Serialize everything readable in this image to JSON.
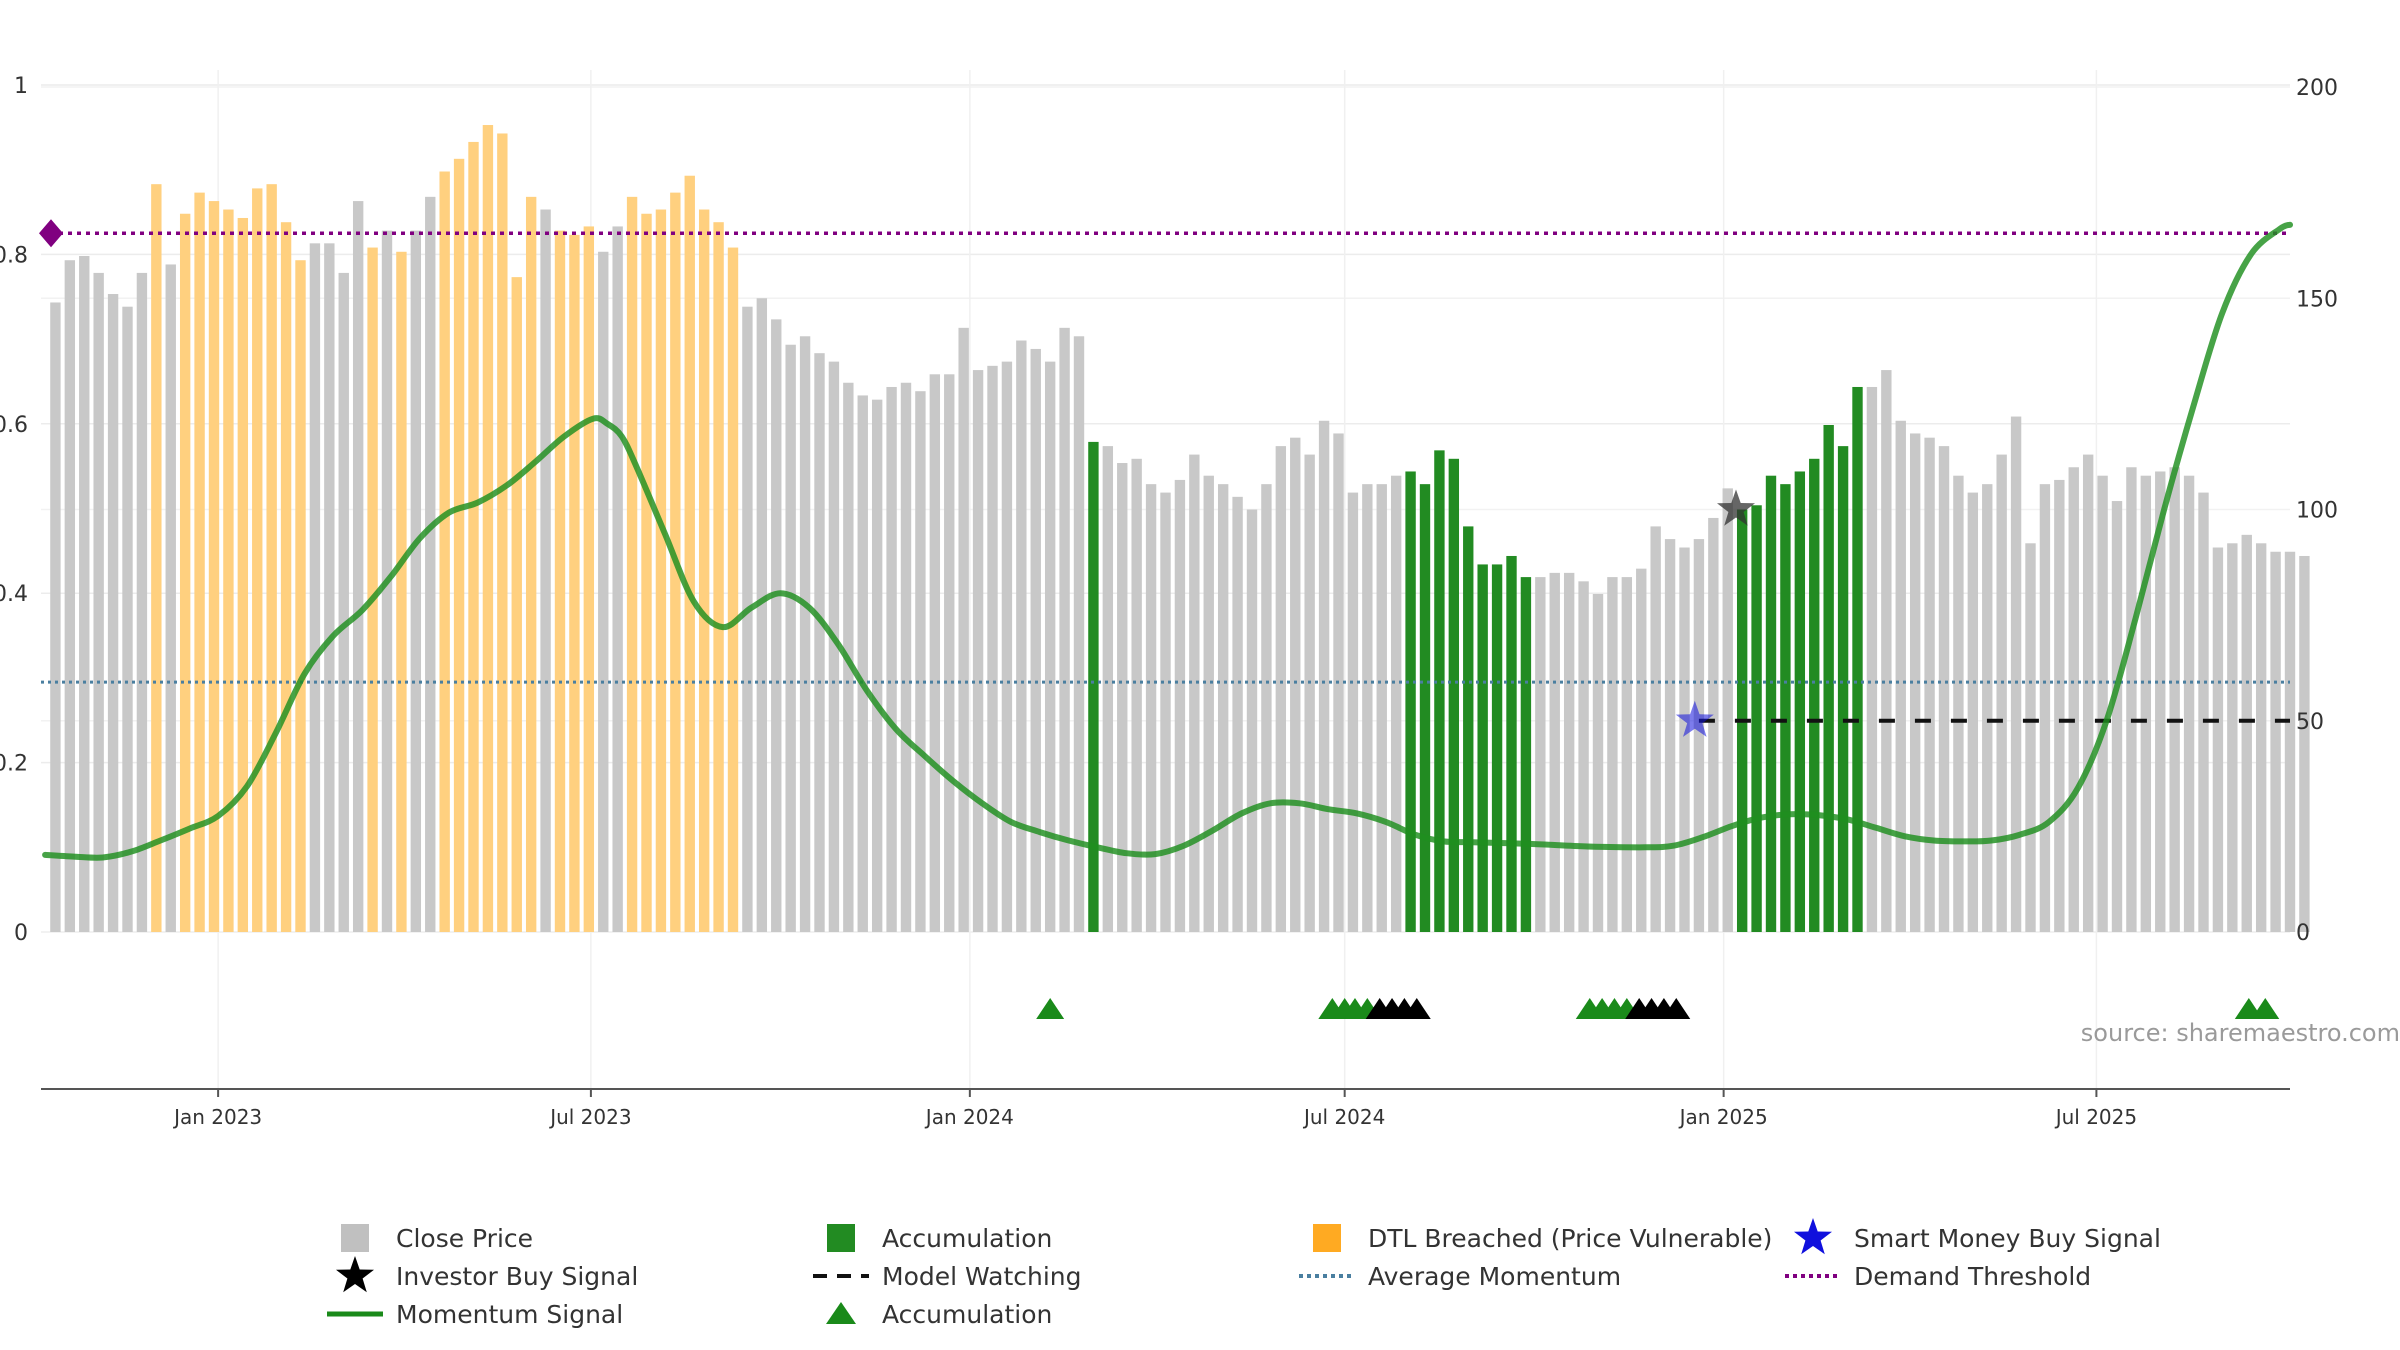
{
  "chart_data": {
    "type": "bar",
    "source": "source: sharemaestro.com",
    "left_axis": {
      "ylim": [
        0,
        1
      ],
      "ticks": [
        0,
        0.2,
        0.4,
        0.6,
        0.8,
        1
      ],
      "labels": [
        "0",
        "0.2",
        "0.4",
        "0.6",
        "0.8",
        "1"
      ]
    },
    "right_axis": {
      "ylim": [
        0,
        200
      ],
      "ticks": [
        0,
        50,
        100,
        150,
        200
      ],
      "labels": [
        "0",
        "50",
        "100",
        "150",
        "200"
      ]
    },
    "x_axis": {
      "start": "2022-10-07",
      "end": "2025-10-03",
      "ticks": [
        {
          "date": "2023-01-01",
          "label": "Jan 2023"
        },
        {
          "date": "2023-07-01",
          "label": "Jul 2023"
        },
        {
          "date": "2024-01-01",
          "label": "Jan 2024"
        },
        {
          "date": "2024-07-01",
          "label": "Jul 2024"
        },
        {
          "date": "2025-01-01",
          "label": "Jan 2025"
        },
        {
          "date": "2025-07-01",
          "label": "Jul 2025"
        }
      ]
    },
    "colors": {
      "close_price": "#c8c8c8",
      "accumulation": "#228b22",
      "dtl_breached": "#ffd07f",
      "momentum": "#1f8f1f",
      "average_momentum": "#4a7fa0",
      "demand_threshold": "#800080",
      "model_watching": "#111111",
      "smart_money": "#1010dd",
      "investor_buy": "#333333"
    },
    "bars": {
      "first_week": "2022-10-14",
      "close": [
        149,
        159,
        160,
        156,
        151,
        148,
        156,
        177,
        158,
        170,
        175,
        173,
        171,
        169,
        176,
        177,
        168,
        159,
        163,
        163,
        156,
        173,
        162,
        166,
        161,
        166,
        174,
        180,
        183,
        187,
        191,
        189,
        155,
        174,
        171,
        166,
        165,
        167,
        161,
        167,
        174,
        170,
        171,
        175,
        179,
        171,
        168,
        162,
        148,
        150,
        145,
        139,
        141,
        137,
        135,
        130,
        127,
        126,
        129,
        130,
        128,
        132,
        132,
        143,
        133,
        134,
        135,
        140,
        138,
        135,
        143,
        141,
        116,
        115,
        111,
        112,
        106,
        104,
        107,
        113,
        108,
        106,
        103,
        100,
        106,
        115,
        117,
        113,
        121,
        118,
        104,
        106,
        106,
        108,
        109,
        106,
        114,
        112,
        96,
        87,
        87,
        89,
        84,
        84,
        85,
        85,
        83,
        80,
        84,
        84,
        86,
        96,
        93,
        91,
        93,
        98,
        105,
        100,
        101,
        108,
        106,
        109,
        112,
        120,
        115,
        129,
        129,
        133,
        121,
        118,
        117,
        115,
        108,
        104,
        106,
        113,
        122,
        92,
        106,
        107,
        110,
        113,
        108,
        102,
        110,
        108,
        109,
        110,
        108,
        104,
        91,
        92,
        94,
        92,
        90,
        90,
        89
      ],
      "state": "nnnnnnndndddddddddnnnndndnndddddddndddnnddddddddnnnnnnnnnnnnnnnnnnnnnnnnannnnnnnnnnnnnnnnnnnnnaaaaaaaaannnnnnnnnnnnnnaaaaaaaaannnnnnnnnnnnnnnnnnnnnnnnnnnnnnnnnnnaan"
    },
    "momentum_points": [
      [
        "2022-10-09",
        0.091
      ],
      [
        "2022-10-23",
        0.089
      ],
      [
        "2022-11-06",
        0.088
      ],
      [
        "2022-11-20",
        0.095
      ],
      [
        "2022-12-04",
        0.108
      ],
      [
        "2022-12-18",
        0.122
      ],
      [
        "2023-01-01",
        0.137
      ],
      [
        "2023-01-15",
        0.172
      ],
      [
        "2023-01-29",
        0.235
      ],
      [
        "2023-02-12",
        0.305
      ],
      [
        "2023-02-26",
        0.35
      ],
      [
        "2023-03-12",
        0.38
      ],
      [
        "2023-03-26",
        0.42
      ],
      [
        "2023-04-09",
        0.465
      ],
      [
        "2023-04-23",
        0.495
      ],
      [
        "2023-05-07",
        0.507
      ],
      [
        "2023-05-21",
        0.527
      ],
      [
        "2023-06-04",
        0.555
      ],
      [
        "2023-06-18",
        0.585
      ],
      [
        "2023-07-02",
        0.606
      ],
      [
        "2023-07-09",
        0.6
      ],
      [
        "2023-07-16",
        0.585
      ],
      [
        "2023-07-23",
        0.55
      ],
      [
        "2023-08-06",
        0.47
      ],
      [
        "2023-08-20",
        0.39
      ],
      [
        "2023-09-03",
        0.36
      ],
      [
        "2023-09-17",
        0.383
      ],
      [
        "2023-10-01",
        0.4
      ],
      [
        "2023-10-15",
        0.383
      ],
      [
        "2023-10-29",
        0.34
      ],
      [
        "2023-11-12",
        0.285
      ],
      [
        "2023-11-26",
        0.24
      ],
      [
        "2023-12-10",
        0.208
      ],
      [
        "2023-12-24",
        0.178
      ],
      [
        "2024-01-07",
        0.152
      ],
      [
        "2024-01-21",
        0.13
      ],
      [
        "2024-02-04",
        0.118
      ],
      [
        "2024-02-18",
        0.108
      ],
      [
        "2024-03-03",
        0.1
      ],
      [
        "2024-03-17",
        0.093
      ],
      [
        "2024-03-31",
        0.092
      ],
      [
        "2024-04-14",
        0.102
      ],
      [
        "2024-04-28",
        0.12
      ],
      [
        "2024-05-12",
        0.14
      ],
      [
        "2024-05-26",
        0.152
      ],
      [
        "2024-06-09",
        0.152
      ],
      [
        "2024-06-23",
        0.145
      ],
      [
        "2024-07-07",
        0.14
      ],
      [
        "2024-07-21",
        0.13
      ],
      [
        "2024-08-04",
        0.115
      ],
      [
        "2024-08-18",
        0.107
      ],
      [
        "2024-09-01",
        0.106
      ],
      [
        "2024-09-29",
        0.104
      ],
      [
        "2024-10-27",
        0.101
      ],
      [
        "2024-11-24",
        0.1
      ],
      [
        "2024-12-08",
        0.102
      ],
      [
        "2024-12-22",
        0.112
      ],
      [
        "2025-01-05",
        0.125
      ],
      [
        "2025-01-19",
        0.135
      ],
      [
        "2025-02-02",
        0.139
      ],
      [
        "2025-02-16",
        0.138
      ],
      [
        "2025-03-02",
        0.133
      ],
      [
        "2025-03-16",
        0.123
      ],
      [
        "2025-03-30",
        0.113
      ],
      [
        "2025-04-13",
        0.108
      ],
      [
        "2025-04-27",
        0.107
      ],
      [
        "2025-05-11",
        0.108
      ],
      [
        "2025-05-25",
        0.115
      ],
      [
        "2025-06-08",
        0.13
      ],
      [
        "2025-06-22",
        0.17
      ],
      [
        "2025-07-06",
        0.25
      ],
      [
        "2025-07-20",
        0.37
      ],
      [
        "2025-08-03",
        0.5
      ],
      [
        "2025-08-17",
        0.62
      ],
      [
        "2025-08-31",
        0.73
      ],
      [
        "2025-09-14",
        0.8
      ],
      [
        "2025-09-28",
        0.83
      ],
      [
        "2025-10-03",
        0.835
      ]
    ],
    "average_momentum": 0.295,
    "demand_threshold": 0.825,
    "model_watching": {
      "from": "2024-12-20",
      "to": "2025-10-03",
      "value": 50
    },
    "smart_money_buy_signal": {
      "date": "2024-12-18",
      "value": 50
    },
    "investor_buy_signal": {
      "date": "2025-01-07",
      "value": 100
    },
    "markers": [
      {
        "date": "2024-02-09",
        "type": "accumulation"
      },
      {
        "date": "2024-06-25",
        "type": "accumulation"
      },
      {
        "date": "2024-07-01",
        "type": "accumulation"
      },
      {
        "date": "2024-07-06",
        "type": "accumulation"
      },
      {
        "date": "2024-07-12",
        "type": "accumulation"
      },
      {
        "date": "2024-07-18",
        "type": "model_watching"
      },
      {
        "date": "2024-07-24",
        "type": "model_watching"
      },
      {
        "date": "2024-07-30",
        "type": "model_watching"
      },
      {
        "date": "2024-08-05",
        "type": "model_watching"
      },
      {
        "date": "2024-10-28",
        "type": "accumulation"
      },
      {
        "date": "2024-11-03",
        "type": "accumulation"
      },
      {
        "date": "2024-11-09",
        "type": "accumulation"
      },
      {
        "date": "2024-11-15",
        "type": "accumulation"
      },
      {
        "date": "2024-11-21",
        "type": "model_watching"
      },
      {
        "date": "2024-11-27",
        "type": "model_watching"
      },
      {
        "date": "2024-12-03",
        "type": "model_watching"
      },
      {
        "date": "2024-12-09",
        "type": "model_watching"
      },
      {
        "date": "2025-09-13",
        "type": "accumulation"
      },
      {
        "date": "2025-09-21",
        "type": "accumulation"
      }
    ],
    "legend": [
      {
        "label": "Close Price",
        "symbol": "square",
        "color": "#c0c0c0"
      },
      {
        "label": "Accumulation",
        "symbol": "square",
        "color": "#228b22"
      },
      {
        "label": "DTL Breached (Price Vulnerable)",
        "symbol": "square",
        "color": "#ffaa22"
      },
      {
        "label": "Smart Money Buy Signal",
        "symbol": "star",
        "color": "#1010dd"
      },
      {
        "label": "Investor Buy Signal",
        "symbol": "star",
        "color": "#000000"
      },
      {
        "label": "Model Watching",
        "symbol": "dash",
        "color": "#111111"
      },
      {
        "label": "Average Momentum",
        "symbol": "dot",
        "color": "#4a7fa0"
      },
      {
        "label": "Demand Threshold",
        "symbol": "dot",
        "color": "#800080"
      },
      {
        "label": "Momentum Signal",
        "symbol": "line",
        "color": "#1a8a1a"
      },
      {
        "label": "Accumulation",
        "symbol": "triangle",
        "color": "#1a8a1a"
      }
    ]
  }
}
